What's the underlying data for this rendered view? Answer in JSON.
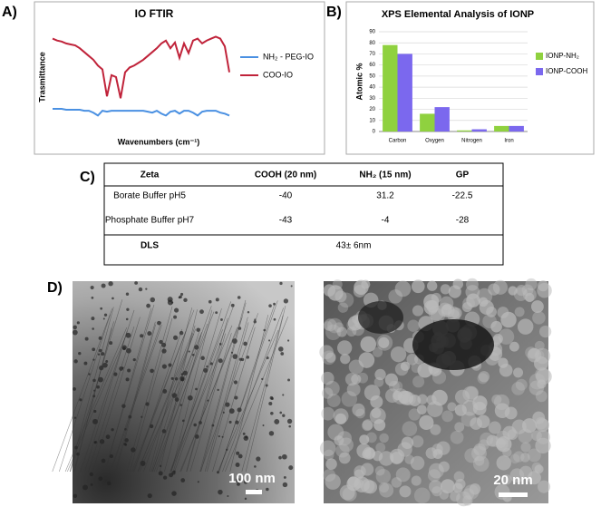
{
  "panel_labels": [
    "A)",
    "B)",
    "C)",
    "D)"
  ],
  "chart_data": [
    {
      "type": "line",
      "title": "IO FTIR",
      "ylabel": "Trasmittance",
      "xlabel": "Wavenumbers (cm⁻¹)",
      "ylim": [
        0,
        100
      ],
      "series": [
        {
          "name": "NH₂ - PEG-IO",
          "color": "#4a90e2",
          "values": [
            17,
            17,
            17,
            16,
            16,
            16,
            16,
            15,
            15,
            13,
            10,
            15,
            14,
            15,
            15,
            15,
            15,
            15,
            15,
            15,
            15,
            14,
            13,
            15,
            12,
            10,
            14,
            15,
            12,
            15,
            15,
            13,
            10,
            14,
            15,
            15,
            15,
            13,
            12,
            10
          ]
        },
        {
          "name": "COO-IO",
          "color": "#c0233a",
          "values": [
            90,
            88,
            87,
            85,
            84,
            83,
            80,
            76,
            72,
            68,
            62,
            58,
            30,
            52,
            50,
            28,
            55,
            60,
            62,
            65,
            68,
            72,
            76,
            80,
            85,
            88,
            80,
            86,
            70,
            85,
            75,
            88,
            90,
            85,
            88,
            90,
            92,
            90,
            82,
            55
          ]
        }
      ]
    },
    {
      "type": "bar",
      "title": "XPS Elemental Analysis of IONP",
      "ylabel": "Atomic %",
      "categories": [
        "Carbon",
        "Oxygen",
        "Nitrogen",
        "Iron"
      ],
      "series": [
        {
          "name": "IONP-NH₂",
          "color": "#8fd13f",
          "values": [
            78,
            16,
            1,
            5
          ]
        },
        {
          "name": "IONP-COOH",
          "color": "#7b68ee",
          "values": [
            70,
            22,
            2,
            5
          ]
        }
      ],
      "ylim": [
        0,
        90
      ],
      "yticks": [
        0,
        10,
        20,
        30,
        40,
        50,
        60,
        70,
        80,
        90
      ],
      "grid": true
    }
  ],
  "table": {
    "header": [
      "Zeta",
      "COOH (20 nm)",
      "NH₂ (15 nm)",
      "GP"
    ],
    "rows": [
      [
        "Borate Buffer pH5",
        "-40",
        "31.2",
        "-22.5"
      ],
      [
        "Phosphate Buffer pH7",
        "-43",
        "-4",
        "-28"
      ]
    ],
    "dls": [
      "DLS",
      "43± 6nm"
    ]
  },
  "images": [
    {
      "scale": "100 nm"
    },
    {
      "scale": "20 nm"
    }
  ]
}
